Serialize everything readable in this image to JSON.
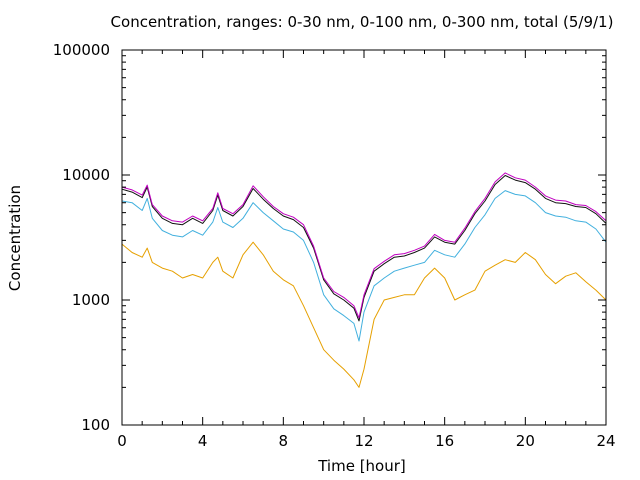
{
  "chart_data": {
    "type": "line",
    "title": "Concentration, ranges: 0-30 nm, 0-100 nm, 0-300 nm, total (5/9/1)",
    "xlabel": "Time [hour]",
    "ylabel": "Concentration",
    "xlim": [
      0,
      24
    ],
    "ylim": [
      100,
      100000
    ],
    "yscale": "log",
    "grid": false,
    "legend": "none",
    "x_ticks": [
      0,
      4,
      8,
      12,
      16,
      20,
      24
    ],
    "x_tick_labels": [
      "0",
      "4",
      "8",
      "12",
      "16",
      "20",
      "24"
    ],
    "y_ticks": [
      100,
      1000,
      10000,
      100000
    ],
    "y_tick_labels": [
      "100",
      "1000",
      "10000",
      "100000"
    ],
    "x": [
      0,
      0.5,
      1,
      1.25,
      1.5,
      2,
      2.5,
      3,
      3.5,
      4,
      4.5,
      4.75,
      5,
      5.5,
      6,
      6.5,
      7,
      7.5,
      8,
      8.5,
      9,
      9.5,
      10,
      10.5,
      11,
      11.5,
      11.75,
      12,
      12.5,
      13,
      13.5,
      14,
      14.5,
      15,
      15.5,
      16,
      16.5,
      17,
      17.5,
      18,
      18.5,
      19,
      19.5,
      20,
      20.5,
      21,
      21.5,
      22,
      22.5,
      23,
      23.5,
      24
    ],
    "series": [
      {
        "color": "#e6a000",
        "values": [
          2800,
          2400,
          2200,
          2600,
          2000,
          1800,
          1700,
          1500,
          1600,
          1500,
          2000,
          2200,
          1700,
          1500,
          2300,
          2900,
          2300,
          1700,
          1450,
          1300,
          900,
          600,
          400,
          330,
          280,
          230,
          200,
          280,
          700,
          1000,
          1050,
          1100,
          1100,
          1500,
          1800,
          1500,
          1000,
          1100,
          1200,
          1700,
          1900,
          2100,
          2000,
          2400,
          2100,
          1600,
          1350,
          1550,
          1650,
          1400,
          1200,
          1000
        ]
      },
      {
        "color": "#42b0de",
        "values": [
          6200,
          6000,
          5200,
          6500,
          4500,
          3600,
          3300,
          3200,
          3600,
          3300,
          4200,
          5500,
          4200,
          3800,
          4500,
          6000,
          5000,
          4300,
          3700,
          3500,
          3000,
          2000,
          1100,
          850,
          750,
          650,
          470,
          800,
          1300,
          1500,
          1700,
          1800,
          1900,
          2000,
          2500,
          2300,
          2200,
          2800,
          3800,
          4800,
          6500,
          7500,
          7000,
          6800,
          6000,
          5000,
          4700,
          4600,
          4300,
          4200,
          3700,
          2900
        ]
      },
      {
        "color": "#111111",
        "values": [
          7700,
          7300,
          6600,
          8000,
          5600,
          4500,
          4100,
          4000,
          4500,
          4100,
          5200,
          6900,
          5200,
          4700,
          5600,
          7800,
          6400,
          5400,
          4700,
          4400,
          3800,
          2600,
          1450,
          1120,
          1000,
          860,
          680,
          1050,
          1700,
          1950,
          2200,
          2250,
          2400,
          2600,
          3200,
          2900,
          2800,
          3600,
          4900,
          6200,
          8400,
          9900,
          9100,
          8700,
          7700,
          6500,
          6000,
          5900,
          5600,
          5500,
          4900,
          4100
        ]
      },
      {
        "color": "#c000c0",
        "values": [
          8000,
          7600,
          6900,
          8300,
          5800,
          4700,
          4300,
          4200,
          4700,
          4300,
          5400,
          7200,
          5400,
          4900,
          5800,
          8200,
          6700,
          5600,
          4900,
          4600,
          4000,
          2700,
          1500,
          1170,
          1050,
          900,
          720,
          1100,
          1780,
          2040,
          2300,
          2350,
          2500,
          2700,
          3350,
          3000,
          2900,
          3750,
          5100,
          6500,
          8800,
          10400,
          9500,
          9100,
          8000,
          6800,
          6300,
          6200,
          5800,
          5700,
          5100,
          4300
        ]
      }
    ]
  }
}
